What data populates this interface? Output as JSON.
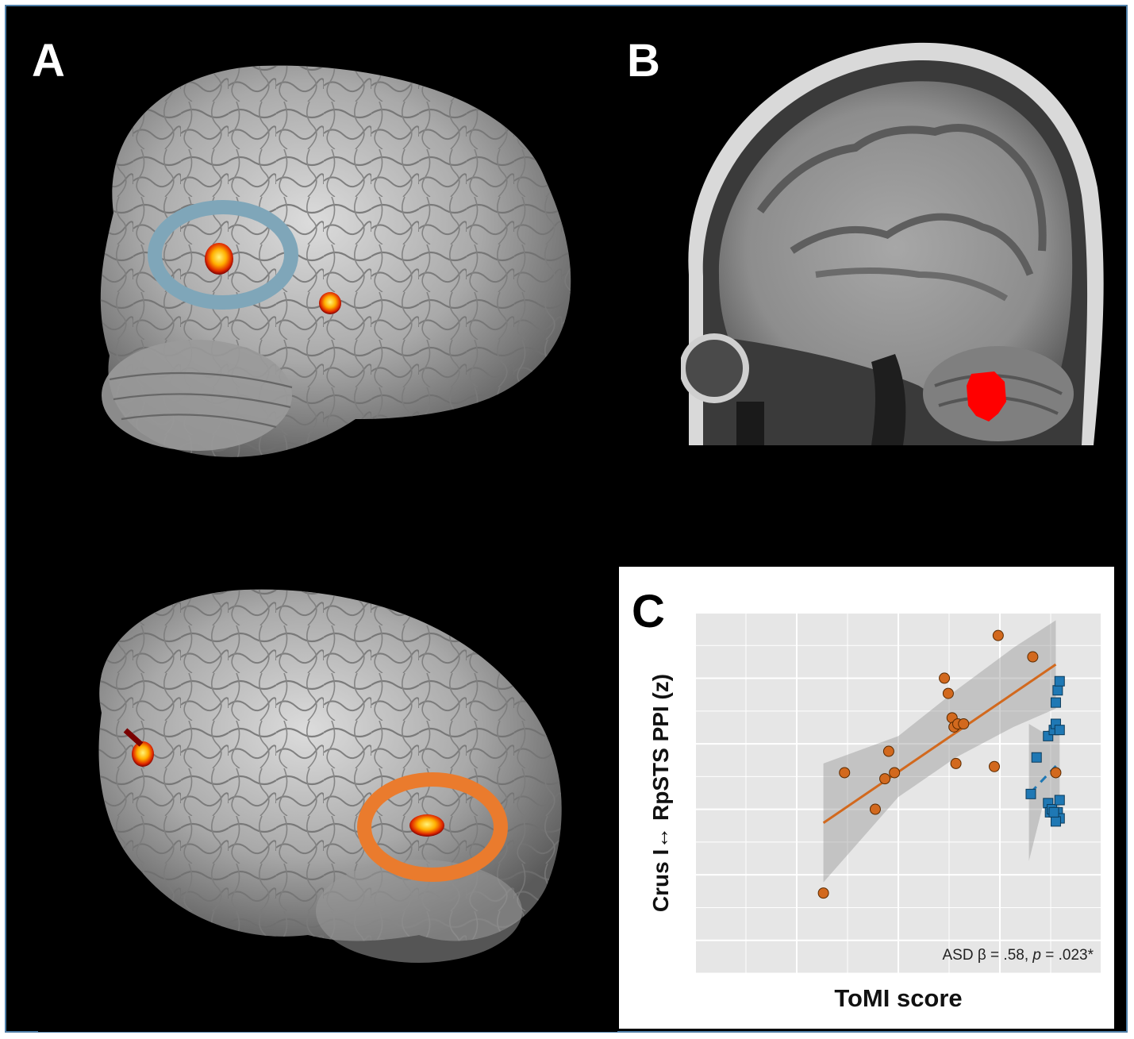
{
  "panels": {
    "a": {
      "letter": "A"
    },
    "b": {
      "letter": "B"
    },
    "c": {
      "letter": "C"
    }
  },
  "colors": {
    "frame_border": "#4f7fa8",
    "blue_ring": "#7fa6b9",
    "orange_ring": "#ea7b2d",
    "activation_red": "#ff0000",
    "asd_points": "#d2691e",
    "td_points": "#1f78b4",
    "panel_bg": "#000000",
    "plot_bg": "#e6e6e6"
  },
  "chart_data": {
    "type": "scatter",
    "title": "",
    "xlabel": "ToMI score",
    "ylabel": "Crus I↔ RpSTS PPI (z)",
    "annotation": {
      "prefix": "ASD β = .58, ",
      "p_symbol": "p",
      "suffix": " = .023*"
    },
    "xlim": [
      0,
      10
    ],
    "ylim": [
      0,
      10
    ],
    "grid": true,
    "legend": "none",
    "series": [
      {
        "marker": "circle",
        "color": "#d2691e",
        "points": [
          {
            "x": 3.05,
            "y": 1.95
          },
          {
            "x": 3.6,
            "y": 5.9
          },
          {
            "x": 4.4,
            "y": 4.7
          },
          {
            "x": 4.65,
            "y": 5.7
          },
          {
            "x": 4.75,
            "y": 6.6
          },
          {
            "x": 4.9,
            "y": 5.9
          },
          {
            "x": 6.2,
            "y": 9.0
          },
          {
            "x": 6.3,
            "y": 8.5
          },
          {
            "x": 6.4,
            "y": 7.7
          },
          {
            "x": 6.45,
            "y": 7.4
          },
          {
            "x": 6.5,
            "y": 6.2
          },
          {
            "x": 6.55,
            "y": 7.5
          },
          {
            "x": 6.7,
            "y": 7.5
          },
          {
            "x": 7.5,
            "y": 6.1
          },
          {
            "x": 7.6,
            "y": 10.4
          },
          {
            "x": 8.5,
            "y": 9.7
          },
          {
            "x": 9.1,
            "y": 5.9
          }
        ],
        "fit": {
          "x": [
            3.05,
            9.1
          ],
          "y": [
            4.25,
            9.45
          ]
        },
        "band_upper": [
          {
            "x": 3.05,
            "y": 6.2
          },
          {
            "x": 5.0,
            "y": 7.1
          },
          {
            "x": 6.5,
            "y": 8.6
          },
          {
            "x": 8.0,
            "y": 10.0
          },
          {
            "x": 9.1,
            "y": 10.9
          }
        ],
        "band_lower": [
          {
            "x": 9.1,
            "y": 8.0
          },
          {
            "x": 8.0,
            "y": 7.4
          },
          {
            "x": 6.5,
            "y": 6.4
          },
          {
            "x": 5.0,
            "y": 5.1
          },
          {
            "x": 3.05,
            "y": 2.3
          }
        ]
      },
      {
        "marker": "square",
        "color": "#1f78b4",
        "points": [
          {
            "x": 8.45,
            "y": 5.2
          },
          {
            "x": 8.6,
            "y": 6.4
          },
          {
            "x": 8.9,
            "y": 7.1
          },
          {
            "x": 8.9,
            "y": 4.9
          },
          {
            "x": 8.95,
            "y": 4.6
          },
          {
            "x": 9.0,
            "y": 4.7
          },
          {
            "x": 9.05,
            "y": 7.3
          },
          {
            "x": 9.1,
            "y": 8.2
          },
          {
            "x": 9.1,
            "y": 7.5
          },
          {
            "x": 9.15,
            "y": 8.6
          },
          {
            "x": 9.2,
            "y": 8.9
          },
          {
            "x": 9.2,
            "y": 7.3
          },
          {
            "x": 9.2,
            "y": 5.0
          },
          {
            "x": 9.15,
            "y": 4.6
          },
          {
            "x": 9.2,
            "y": 4.4
          },
          {
            "x": 9.1,
            "y": 4.3
          },
          {
            "x": 9.05,
            "y": 4.6
          }
        ],
        "fit": {
          "x": [
            8.45,
            9.2
          ],
          "y": [
            5.25,
            6.25
          ]
        },
        "band_upper": [
          {
            "x": 8.4,
            "y": 7.5
          },
          {
            "x": 8.8,
            "y": 7.2
          },
          {
            "x": 9.2,
            "y": 7.6
          }
        ],
        "band_lower": [
          {
            "x": 9.2,
            "y": 4.7
          },
          {
            "x": 8.8,
            "y": 5.0
          },
          {
            "x": 8.4,
            "y": 3.0
          }
        ]
      }
    ]
  }
}
